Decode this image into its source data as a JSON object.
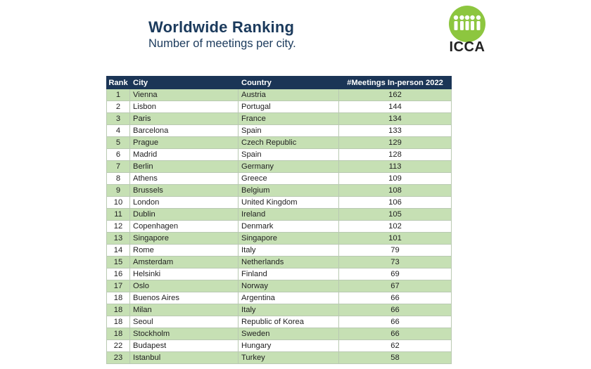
{
  "header": {
    "title": "Worldwide Ranking",
    "subtitle": "Number of meetings per city."
  },
  "logo": {
    "text": "ICCA",
    "icon": "icca-people-logo-icon",
    "color": "#8dc63f"
  },
  "colors": {
    "header_bg": "#1b3556",
    "row_highlight": "#c6e0b4",
    "title": "#1b3a5c"
  },
  "table": {
    "columns": [
      "Rank",
      "City",
      "Country",
      "#Meetings In-person 2022"
    ],
    "rows": [
      [
        "1",
        "Vienna",
        "Austria",
        "162"
      ],
      [
        "2",
        "Lisbon",
        "Portugal",
        "144"
      ],
      [
        "3",
        "Paris",
        "France",
        "134"
      ],
      [
        "4",
        "Barcelona",
        "Spain",
        "133"
      ],
      [
        "5",
        "Prague",
        "Czech Republic",
        "129"
      ],
      [
        "6",
        "Madrid",
        "Spain",
        "128"
      ],
      [
        "7",
        "Berlin",
        "Germany",
        "113"
      ],
      [
        "8",
        "Athens",
        "Greece",
        "109"
      ],
      [
        "9",
        "Brussels",
        "Belgium",
        "108"
      ],
      [
        "10",
        "London",
        "United Kingdom",
        "106"
      ],
      [
        "11",
        "Dublin",
        "Ireland",
        "105"
      ],
      [
        "12",
        "Copenhagen",
        "Denmark",
        "102"
      ],
      [
        "13",
        "Singapore",
        "Singapore",
        "101"
      ],
      [
        "14",
        "Rome",
        "Italy",
        "79"
      ],
      [
        "15",
        "Amsterdam",
        "Netherlands",
        "73"
      ],
      [
        "16",
        "Helsinki",
        "Finland",
        "69"
      ],
      [
        "17",
        "Oslo",
        "Norway",
        "67"
      ],
      [
        "18",
        "Buenos Aires",
        "Argentina",
        "66"
      ],
      [
        "18",
        "Milan",
        "Italy",
        "66"
      ],
      [
        "18",
        "Seoul",
        "Republic of Korea",
        "66"
      ],
      [
        "18",
        "Stockholm",
        "Sweden",
        "66"
      ],
      [
        "22",
        "Budapest",
        "Hungary",
        "62"
      ],
      [
        "23",
        "Istanbul",
        "Turkey",
        "58"
      ]
    ]
  }
}
